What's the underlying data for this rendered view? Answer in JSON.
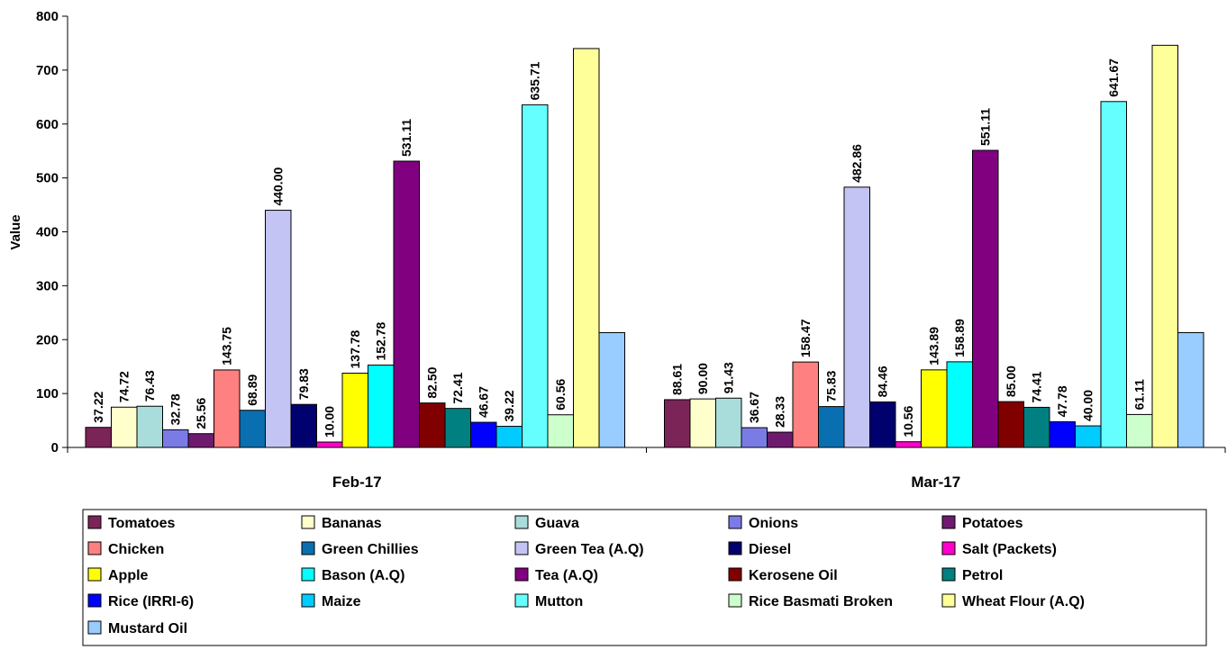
{
  "chart_data": {
    "type": "bar",
    "title": "",
    "xlabel": "",
    "ylabel": "Value",
    "ylim": [
      0,
      800
    ],
    "yticks": [
      0,
      100,
      200,
      300,
      400,
      500,
      600,
      700,
      800
    ],
    "grid": false,
    "legend_placement": "bottom",
    "categories": [
      "Feb-17",
      "Mar-17"
    ],
    "series": [
      {
        "name": "Tomatoes",
        "color": "#7B2458",
        "values": [
          37.22,
          88.61
        ],
        "labels": [
          "37.22",
          "88.61"
        ]
      },
      {
        "name": "Bananas",
        "color": "#FFFFCC",
        "values": [
          74.72,
          90.0
        ],
        "labels": [
          "74.72",
          "90.00"
        ]
      },
      {
        "name": "Guava",
        "color": "#A9DDDB",
        "values": [
          76.43,
          91.43
        ],
        "labels": [
          "76.43",
          "91.43"
        ]
      },
      {
        "name": "Onions",
        "color": "#7B7BE6",
        "values": [
          32.78,
          36.67
        ],
        "labels": [
          "32.78",
          "36.67"
        ]
      },
      {
        "name": "Potatoes",
        "color": "#6E1A6E",
        "values": [
          25.56,
          28.33
        ],
        "labels": [
          "25.56",
          "28.33"
        ]
      },
      {
        "name": "Chicken",
        "color": "#FF8080",
        "values": [
          143.75,
          158.47
        ],
        "labels": [
          "143.75",
          "158.47"
        ]
      },
      {
        "name": "Green Chillies",
        "color": "#0A6FB0",
        "values": [
          68.89,
          75.83
        ],
        "labels": [
          "68.89",
          "75.83"
        ]
      },
      {
        "name": "Green Tea (A.Q)",
        "color": "#C4C4F4",
        "values": [
          440.0,
          482.86
        ],
        "labels": [
          "440.00",
          "482.86"
        ]
      },
      {
        "name": "Diesel",
        "color": "#00006E",
        "values": [
          79.83,
          84.46
        ],
        "labels": [
          "79.83",
          "84.46"
        ]
      },
      {
        "name": "Salt (Packets)",
        "color": "#FF00CC",
        "values": [
          10.0,
          10.56
        ],
        "labels": [
          "10.00",
          "10.56"
        ]
      },
      {
        "name": "Apple",
        "color": "#FFFF00",
        "values": [
          137.78,
          143.89
        ],
        "labels": [
          "137.78",
          "143.89"
        ]
      },
      {
        "name": "Bason (A.Q)",
        "color": "#00FFFF",
        "values": [
          152.78,
          158.89
        ],
        "labels": [
          "152.78",
          "158.89"
        ]
      },
      {
        "name": "Tea (A.Q)",
        "color": "#800080",
        "values": [
          531.11,
          551.11
        ],
        "labels": [
          "531.11",
          "551.11"
        ]
      },
      {
        "name": "Kerosene Oil",
        "color": "#800000",
        "values": [
          82.5,
          85.0
        ],
        "labels": [
          "82.50",
          "85.00"
        ]
      },
      {
        "name": "Petrol",
        "color": "#008080",
        "values": [
          72.41,
          74.41
        ],
        "labels": [
          "72.41",
          "74.41"
        ]
      },
      {
        "name": "Rice (IRRI-6)",
        "color": "#0000FF",
        "values": [
          46.67,
          47.78
        ],
        "labels": [
          "46.67",
          "47.78"
        ]
      },
      {
        "name": "Maize",
        "color": "#00CCFF",
        "values": [
          39.22,
          40.0
        ],
        "labels": [
          "39.22",
          "40.00"
        ]
      },
      {
        "name": "Mutton",
        "color": "#66FFFF",
        "values": [
          635.71,
          641.67
        ],
        "labels": [
          "635.71",
          "641.67"
        ]
      },
      {
        "name": "Rice Basmati Broken",
        "color": "#CCFFCC",
        "values": [
          60.56,
          61.11
        ],
        "labels": [
          "60.56",
          "61.11"
        ]
      },
      {
        "name": "Wheat Flour (A.Q)",
        "color": "#FFFF99",
        "values": [
          740,
          746
        ],
        "labels": [
          "",
          ""
        ]
      },
      {
        "name": "Mustard Oil",
        "color": "#99CCFF",
        "values": [
          213,
          213
        ],
        "labels": [
          "",
          ""
        ]
      }
    ]
  }
}
